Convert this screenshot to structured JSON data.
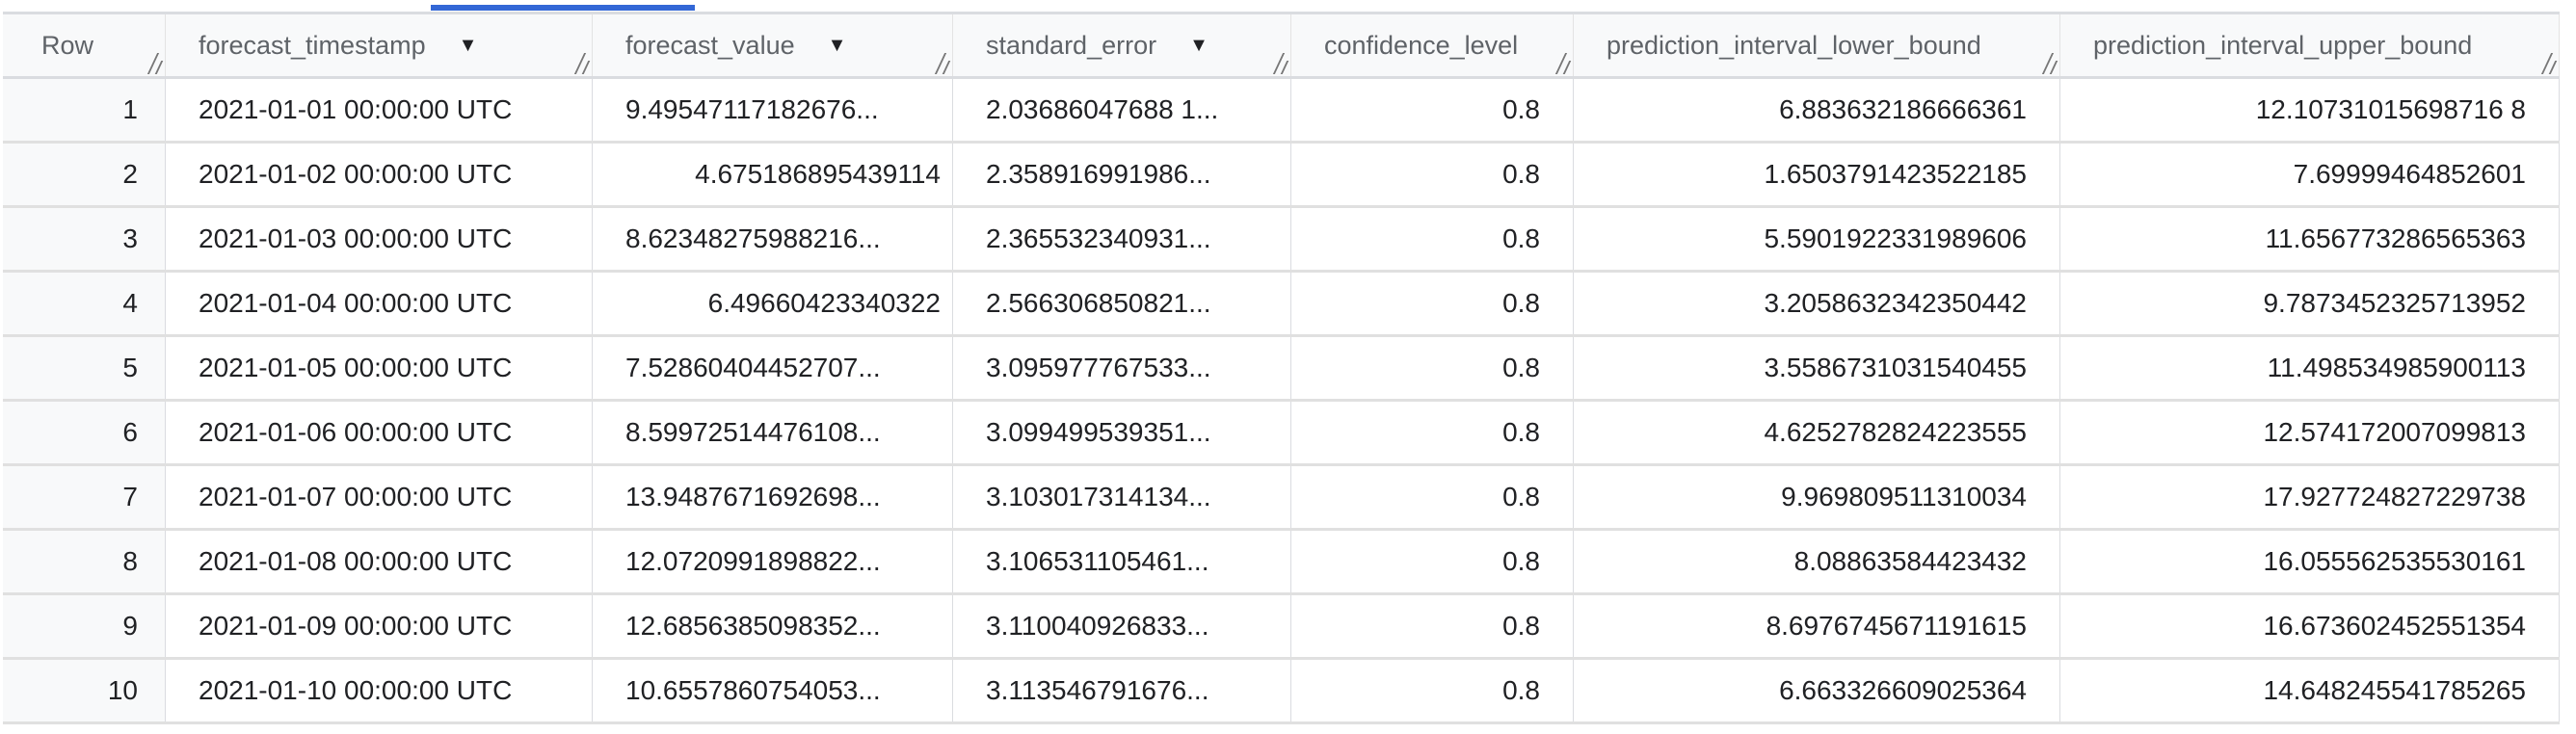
{
  "active_tab_color": "#3367d6",
  "table": {
    "columns": [
      {
        "label": "Row",
        "sortable": false
      },
      {
        "label": "forecast_timestamp",
        "sortable": true
      },
      {
        "label": "forecast_value",
        "sortable": true
      },
      {
        "label": "standard_error",
        "sortable": true
      },
      {
        "label": "confidence_level",
        "sortable": false
      },
      {
        "label": "prediction_interval_lower_bound",
        "sortable": false
      },
      {
        "label": "prediction_interval_upper_bound",
        "sortable": false
      }
    ],
    "sort_icon": "arrow-drop-down-icon",
    "rows": [
      [
        "1",
        "2021-01-01 00:00:00 UTC",
        "9.49547117182676...",
        "2.03686047688 1...",
        "0.8",
        "6.883632186666361",
        "12.10731015698716 8"
      ],
      [
        "2",
        "2021-01-02 00:00:00 UTC",
        "4.675186895439114",
        "2.358916991986...",
        "0.8",
        "1.6503791423522185",
        "7.69999464852601"
      ],
      [
        "3",
        "2021-01-03 00:00:00 UTC",
        "8.62348275988216...",
        "2.365532340931...",
        "0.8",
        "5.5901922331989606",
        "11.656773286565363"
      ],
      [
        "4",
        "2021-01-04 00:00:00 UTC",
        "6.49660423340322",
        "2.566306850821...",
        "0.8",
        "3.2058632342350442",
        "9.7873452325713952"
      ],
      [
        "5",
        "2021-01-05 00:00:00 UTC",
        "7.52860404452707...",
        "3.095977767533...",
        "0.8",
        "3.5586731031540455",
        "11.498534985900113"
      ],
      [
        "6",
        "2021-01-06 00:00:00 UTC",
        "8.59972514476108...",
        "3.099499539351...",
        "0.8",
        "4.6252782824223555",
        "12.574172007099813"
      ],
      [
        "7",
        "2021-01-07 00:00:00 UTC",
        "13.9487671692698...",
        "3.103017314134...",
        "0.8",
        "9.969809511310034",
        "17.927724827229738"
      ],
      [
        "8",
        "2021-01-08 00:00:00 UTC",
        "12.0720991898822...",
        "3.106531105461...",
        "0.8",
        "8.08863584423432",
        "16.055562535530161"
      ],
      [
        "9",
        "2021-01-09 00:00:00 UTC",
        "12.6856385098352...",
        "3.110040926833...",
        "0.8",
        "8.6976745671191615",
        "16.673602452551354"
      ],
      [
        "10",
        "2021-01-10 00:00:00 UTC",
        "10.6557860754053...",
        "3.113546791676...",
        "0.8",
        "6.663326609025364",
        "14.648245541785265"
      ]
    ]
  }
}
